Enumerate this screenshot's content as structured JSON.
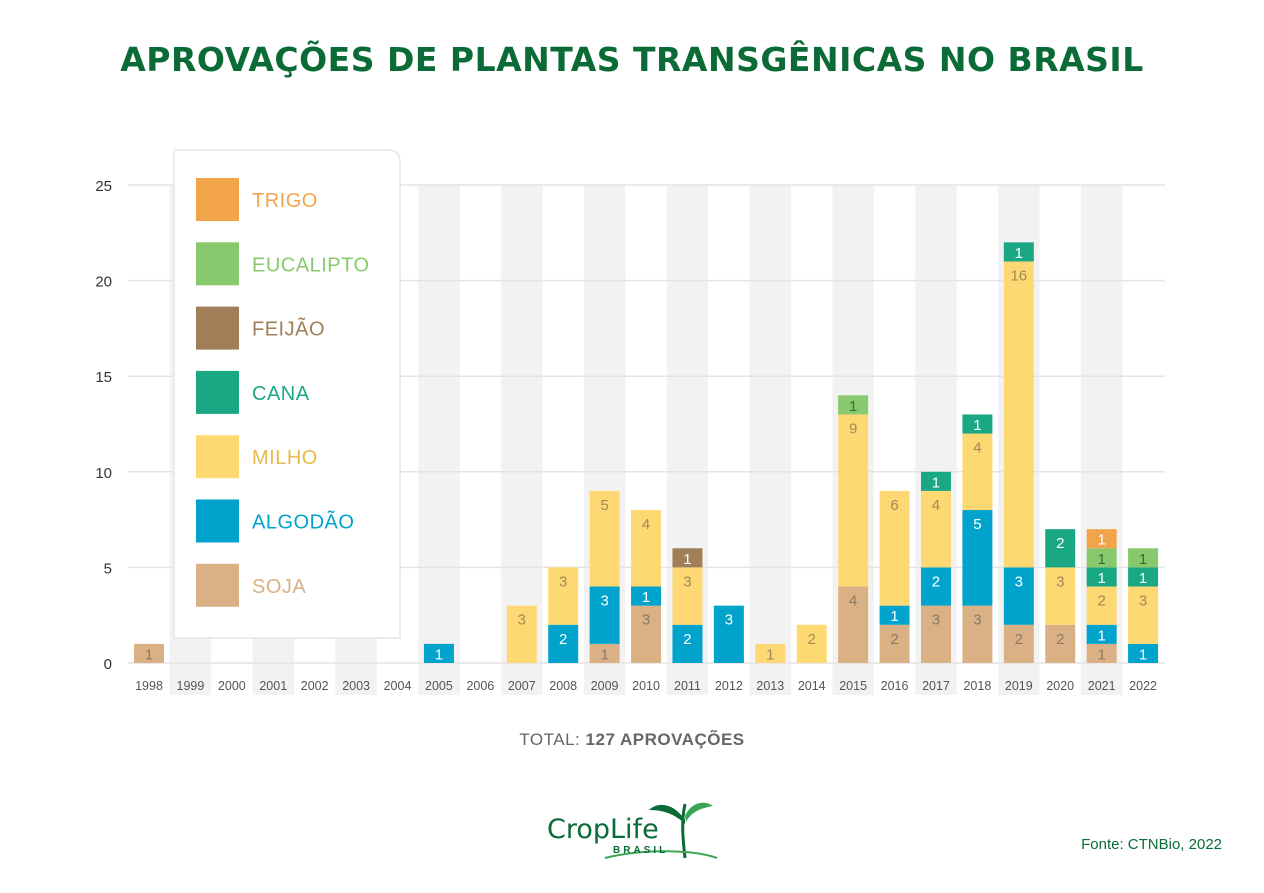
{
  "title": "APROVAÇÕES DE PLANTAS TRANSGÊNICAS NO BRASIL",
  "total": {
    "label": "TOTAL:",
    "value": "127 APROVAÇÕES"
  },
  "source": "Fonte: CTNBio, 2022",
  "logo": {
    "name": "CropLife",
    "sub": "BRASIL"
  },
  "chart_data": {
    "type": "bar",
    "stacked": true,
    "title": "APROVAÇÕES DE PLANTAS TRANSGÊNICAS NO BRASIL",
    "ylim": [
      0,
      25
    ],
    "yticks": [
      0,
      5,
      10,
      15,
      20,
      25
    ],
    "grid": true,
    "legend_position": "top-left",
    "categories": [
      "1998",
      "1999",
      "2000",
      "2001",
      "2002",
      "2003",
      "2004",
      "2005",
      "2006",
      "2007",
      "2008",
      "2009",
      "2010",
      "2011",
      "2012",
      "2013",
      "2014",
      "2015",
      "2016",
      "2017",
      "2018",
      "2019",
      "2020",
      "2021",
      "2022"
    ],
    "series": [
      {
        "name": "SOJA",
        "color": "#d9b185",
        "label_color": "#8a7a66",
        "values": [
          1,
          0,
          0,
          0,
          0,
          0,
          0,
          0,
          0,
          0,
          0,
          1,
          3,
          0,
          0,
          0,
          0,
          4,
          2,
          3,
          3,
          2,
          2,
          1,
          0
        ]
      },
      {
        "name": "ALGODÃO",
        "color": "#00a3cc",
        "label_color": "#ffffff",
        "values": [
          0,
          0,
          0,
          0,
          0,
          0,
          0,
          1,
          0,
          0,
          2,
          3,
          1,
          2,
          3,
          0,
          0,
          0,
          1,
          2,
          5,
          3,
          0,
          1,
          1
        ]
      },
      {
        "name": "MILHO",
        "color": "#fed872",
        "label_color": "#a08a5a",
        "values": [
          0,
          0,
          0,
          0,
          0,
          0,
          0,
          0,
          0,
          3,
          3,
          5,
          4,
          3,
          0,
          1,
          2,
          9,
          6,
          4,
          4,
          16,
          3,
          2,
          3
        ]
      },
      {
        "name": "CANA",
        "color": "#19a883",
        "label_color": "#ffffff",
        "values": [
          0,
          0,
          0,
          0,
          0,
          0,
          0,
          0,
          0,
          0,
          0,
          0,
          0,
          0,
          0,
          0,
          0,
          0,
          0,
          1,
          1,
          1,
          2,
          1,
          1
        ]
      },
      {
        "name": "FEIJÃO",
        "color": "#a07e58",
        "label_color": "#ffffff",
        "values": [
          0,
          0,
          0,
          0,
          0,
          0,
          0,
          0,
          0,
          0,
          0,
          0,
          0,
          1,
          0,
          0,
          0,
          0,
          0,
          0,
          0,
          0,
          0,
          0,
          0
        ]
      },
      {
        "name": "EUCALIPTO",
        "color": "#88c96d",
        "label_color": "#3d6b3a",
        "values": [
          0,
          0,
          0,
          0,
          0,
          0,
          0,
          0,
          0,
          0,
          0,
          0,
          0,
          0,
          0,
          0,
          0,
          1,
          0,
          0,
          0,
          0,
          0,
          1,
          1
        ]
      },
      {
        "name": "TRIGO",
        "color": "#f2a44b",
        "label_color": "#ffffff",
        "values": [
          0,
          0,
          0,
          0,
          0,
          0,
          0,
          0,
          0,
          0,
          0,
          0,
          0,
          0,
          0,
          0,
          0,
          0,
          0,
          0,
          0,
          0,
          0,
          1,
          0
        ]
      }
    ],
    "legend_order": [
      "TRIGO",
      "EUCALIPTO",
      "FEIJÃO",
      "CANA",
      "MILHO",
      "ALGODÃO",
      "SOJA"
    ]
  }
}
